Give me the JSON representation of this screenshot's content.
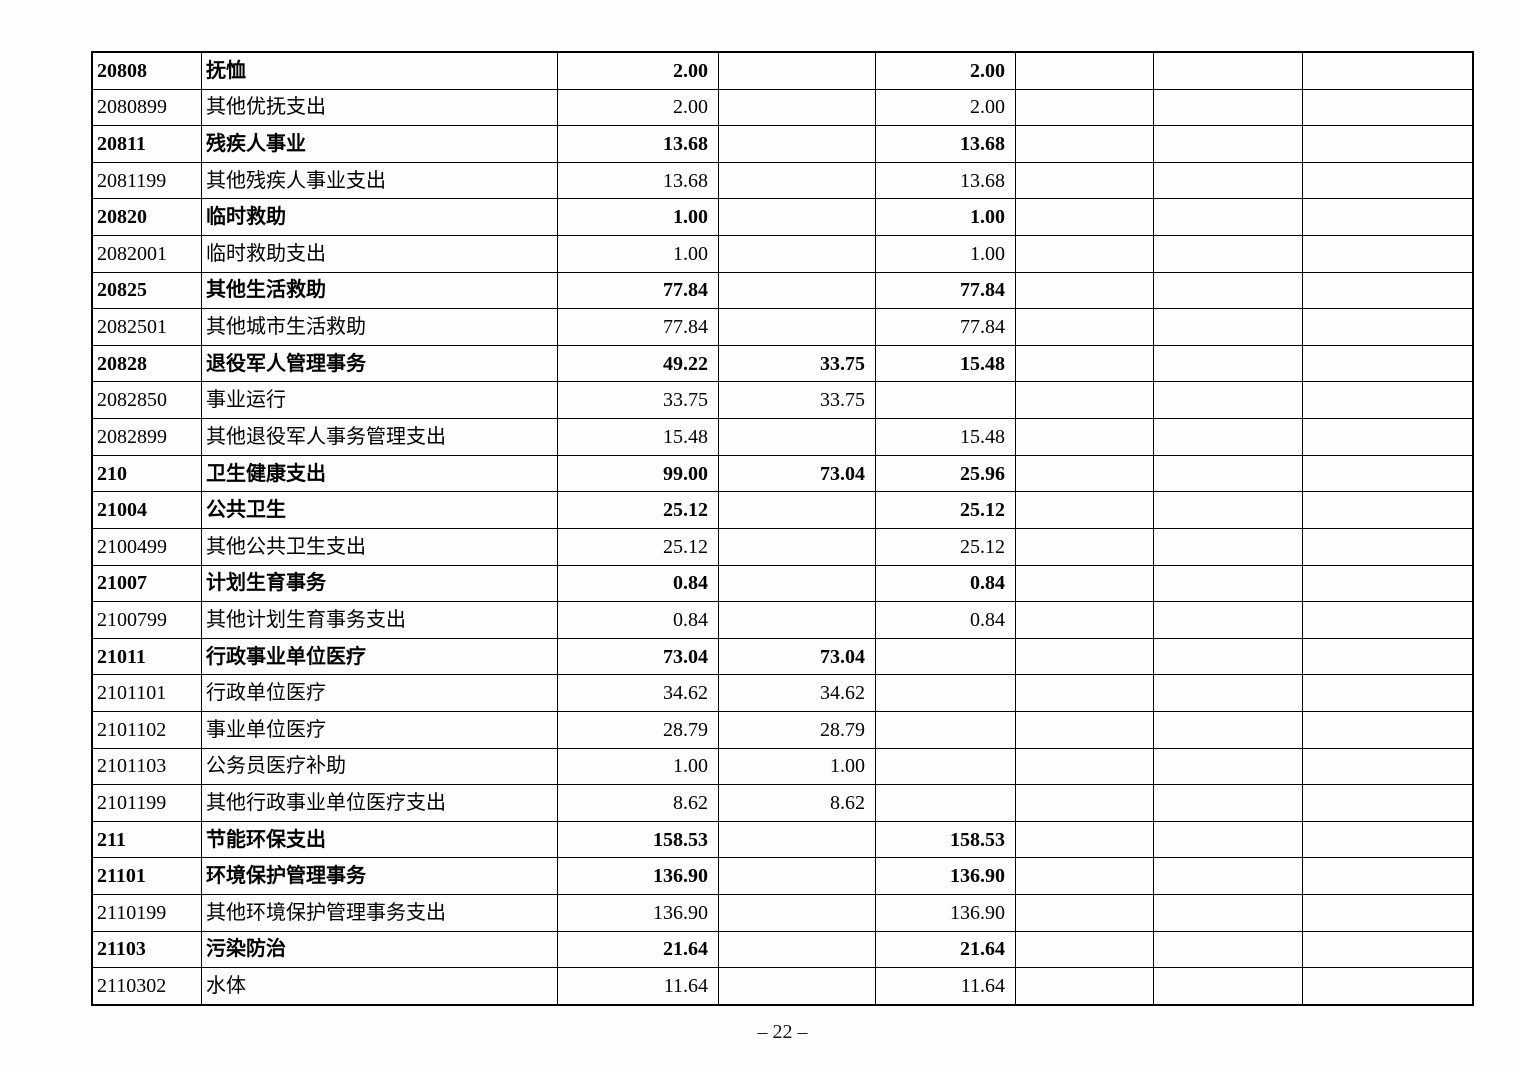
{
  "page": {
    "footer": "– 22 –"
  },
  "table": {
    "rows": [
      {
        "code": "20808",
        "name": "抚恤",
        "v1": "2.00",
        "v2": "",
        "v3": "2.00",
        "bold": true
      },
      {
        "code": "2080899",
        "name": "其他优抚支出",
        "v1": "2.00",
        "v2": "",
        "v3": "2.00",
        "bold": false
      },
      {
        "code": "20811",
        "name": "残疾人事业",
        "v1": "13.68",
        "v2": "",
        "v3": "13.68",
        "bold": true
      },
      {
        "code": "2081199",
        "name": "其他残疾人事业支出",
        "v1": "13.68",
        "v2": "",
        "v3": "13.68",
        "bold": false
      },
      {
        "code": "20820",
        "name": "临时救助",
        "v1": "1.00",
        "v2": "",
        "v3": "1.00",
        "bold": true
      },
      {
        "code": "2082001",
        "name": "临时救助支出",
        "v1": "1.00",
        "v2": "",
        "v3": "1.00",
        "bold": false
      },
      {
        "code": "20825",
        "name": "其他生活救助",
        "v1": "77.84",
        "v2": "",
        "v3": "77.84",
        "bold": true
      },
      {
        "code": "2082501",
        "name": "其他城市生活救助",
        "v1": "77.84",
        "v2": "",
        "v3": "77.84",
        "bold": false
      },
      {
        "code": "20828",
        "name": "退役军人管理事务",
        "v1": "49.22",
        "v2": "33.75",
        "v3": "15.48",
        "bold": true
      },
      {
        "code": "2082850",
        "name": "事业运行",
        "v1": "33.75",
        "v2": "33.75",
        "v3": "",
        "bold": false
      },
      {
        "code": "2082899",
        "name": "其他退役军人事务管理支出",
        "v1": "15.48",
        "v2": "",
        "v3": "15.48",
        "bold": false
      },
      {
        "code": "210",
        "name": "卫生健康支出",
        "v1": "99.00",
        "v2": "73.04",
        "v3": "25.96",
        "bold": true
      },
      {
        "code": "21004",
        "name": "公共卫生",
        "v1": "25.12",
        "v2": "",
        "v3": "25.12",
        "bold": true
      },
      {
        "code": "2100499",
        "name": "其他公共卫生支出",
        "v1": "25.12",
        "v2": "",
        "v3": "25.12",
        "bold": false
      },
      {
        "code": "21007",
        "name": "计划生育事务",
        "v1": "0.84",
        "v2": "",
        "v3": "0.84",
        "bold": true
      },
      {
        "code": "2100799",
        "name": "其他计划生育事务支出",
        "v1": "0.84",
        "v2": "",
        "v3": "0.84",
        "bold": false
      },
      {
        "code": "21011",
        "name": "行政事业单位医疗",
        "v1": "73.04",
        "v2": "73.04",
        "v3": "",
        "bold": true
      },
      {
        "code": "2101101",
        "name": "行政单位医疗",
        "v1": "34.62",
        "v2": "34.62",
        "v3": "",
        "bold": false
      },
      {
        "code": "2101102",
        "name": "事业单位医疗",
        "v1": "28.79",
        "v2": "28.79",
        "v3": "",
        "bold": false
      },
      {
        "code": "2101103",
        "name": "公务员医疗补助",
        "v1": "1.00",
        "v2": "1.00",
        "v3": "",
        "bold": false
      },
      {
        "code": "2101199",
        "name": "其他行政事业单位医疗支出",
        "v1": "8.62",
        "v2": "8.62",
        "v3": "",
        "bold": false
      },
      {
        "code": "211",
        "name": "节能环保支出",
        "v1": "158.53",
        "v2": "",
        "v3": "158.53",
        "bold": true
      },
      {
        "code": "21101",
        "name": "环境保护管理事务",
        "v1": "136.90",
        "v2": "",
        "v3": "136.90",
        "bold": true
      },
      {
        "code": "2110199",
        "name": "其他环境保护管理事务支出",
        "v1": "136.90",
        "v2": "",
        "v3": "136.90",
        "bold": false
      },
      {
        "code": "21103",
        "name": "污染防治",
        "v1": "21.64",
        "v2": "",
        "v3": "21.64",
        "bold": true
      },
      {
        "code": "2110302",
        "name": "水体",
        "v1": "11.64",
        "v2": "",
        "v3": "11.64",
        "bold": false
      }
    ]
  }
}
